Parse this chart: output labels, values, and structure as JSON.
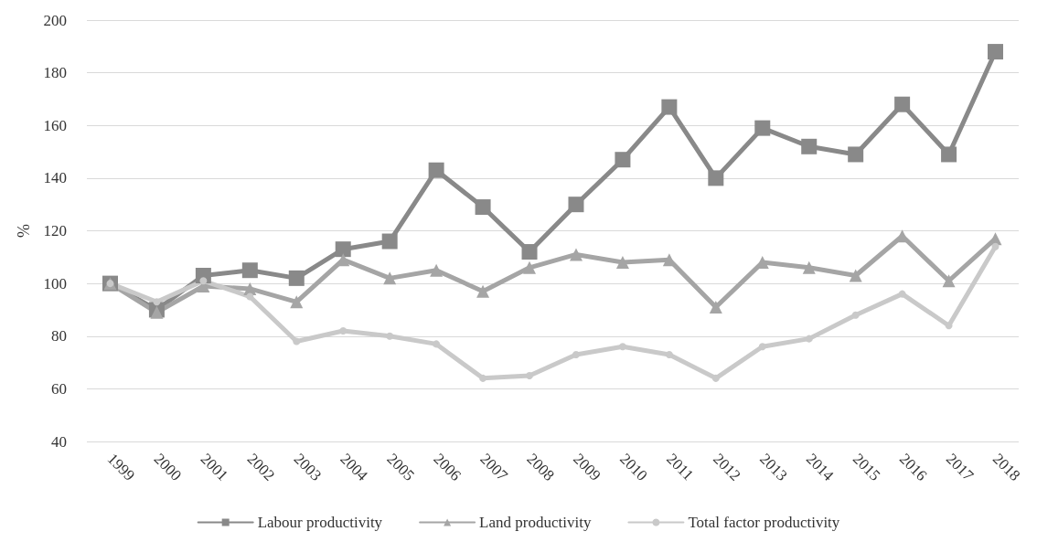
{
  "chart_data": {
    "type": "line",
    "ylabel": "%",
    "categories": [
      "1999",
      "2000",
      "2001",
      "2002",
      "2003",
      "2004",
      "2005",
      "2006",
      "2007",
      "2008",
      "2009",
      "2010",
      "2011",
      "2012",
      "2013",
      "2014",
      "2015",
      "2016",
      "2017",
      "2018"
    ],
    "series": [
      {
        "name": "Labour productivity",
        "color": "#898989",
        "marker": "square",
        "values": [
          100,
          90,
          103,
          105,
          102,
          113,
          116,
          143,
          129,
          112,
          130,
          147,
          167,
          140,
          159,
          152,
          149,
          168,
          149,
          188
        ]
      },
      {
        "name": "Land productivity",
        "color": "#a5a5a5",
        "marker": "triangle",
        "values": [
          100,
          89,
          99,
          98,
          93,
          109,
          102,
          105,
          97,
          106,
          111,
          108,
          109,
          91,
          108,
          106,
          103,
          118,
          101,
          117
        ]
      },
      {
        "name": "Total factor productivity",
        "color": "#c9c9c9",
        "marker": "circle",
        "values": [
          100,
          93,
          101,
          95,
          78,
          82,
          80,
          77,
          64,
          65,
          73,
          76,
          73,
          64,
          76,
          79,
          88,
          96,
          84,
          114
        ]
      }
    ],
    "ylim": [
      40,
      200
    ],
    "yticks": [
      40,
      60,
      80,
      100,
      120,
      140,
      160,
      180,
      200
    ],
    "grid": "y",
    "legend": "bottom",
    "line_style": "solid"
  }
}
